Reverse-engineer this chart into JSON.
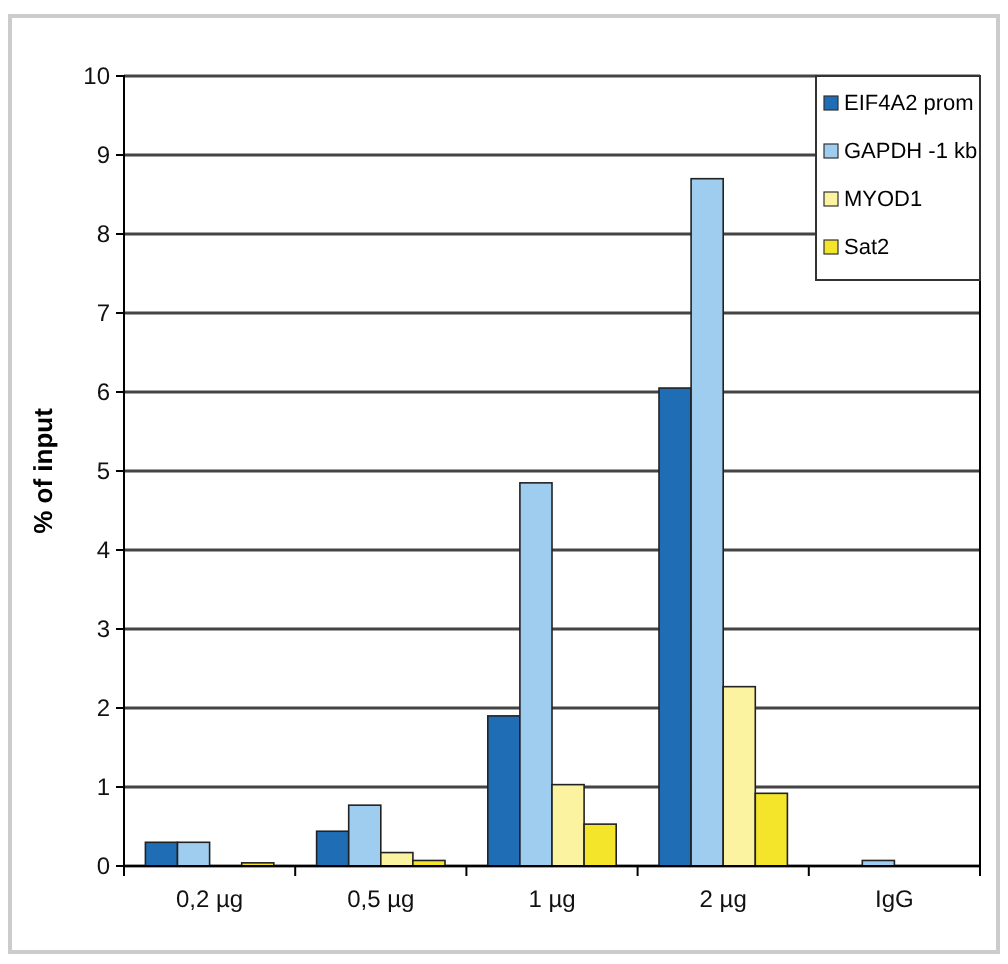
{
  "chart_data": {
    "type": "bar",
    "ylabel": "% of input",
    "categories": [
      "0,2 µg",
      "0,5 µg",
      "1 µg",
      "2 µg",
      "IgG"
    ],
    "series": [
      {
        "name": "EIF4A2 prom",
        "color": "#1f6db5",
        "values": [
          0.3,
          0.44,
          1.9,
          6.05,
          0
        ]
      },
      {
        "name": "GAPDH -1 kb",
        "color": "#9fcdf0",
        "values": [
          0.3,
          0.77,
          4.85,
          8.7,
          0.07
        ]
      },
      {
        "name": "MYOD1",
        "color": "#fbf3a0",
        "values": [
          0,
          0.17,
          1.03,
          2.27,
          null
        ]
      },
      {
        "name": "Sat2",
        "color": "#f5e52a",
        "values": [
          0.04,
          0.07,
          0.53,
          0.92,
          null
        ]
      }
    ],
    "ylim": [
      0,
      10
    ],
    "yticks": [
      0,
      1,
      2,
      3,
      4,
      5,
      6,
      7,
      8,
      9,
      10
    ],
    "grid": "y",
    "legend": "top right"
  }
}
